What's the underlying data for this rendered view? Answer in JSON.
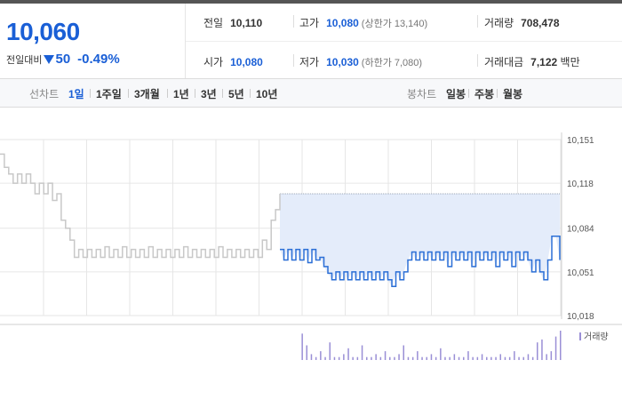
{
  "quote": {
    "price": "10,060",
    "diff_label": "전일대비",
    "diff_amount": "50",
    "diff_rate": "-0.49%"
  },
  "stats": {
    "prev_close": {
      "label": "전일",
      "value": "10,110"
    },
    "high": {
      "label": "고가",
      "value": "10,080",
      "sub": "(상한가 13,140)"
    },
    "volume": {
      "label": "거래량",
      "value": "708,478"
    },
    "open": {
      "label": "시가",
      "value": "10,080"
    },
    "low": {
      "label": "저가",
      "value": "10,030",
      "sub": "(하한가 7,080)"
    },
    "amount": {
      "label": "거래대금",
      "value": "7,122",
      "unit": "백만"
    }
  },
  "toolbar": {
    "line_chart_label": "선차트",
    "periods": [
      "1일",
      "1주일",
      "3개월",
      "1년",
      "3년",
      "5년",
      "10년"
    ],
    "active_period": "1일",
    "candle_chart_label": "봉차트",
    "candles": [
      "일봉",
      "주봉",
      "월봉"
    ]
  },
  "chart_data": {
    "type": "line",
    "y_ticks": [
      "10,151",
      "10,118",
      "10,084",
      "10,051",
      "10,018"
    ],
    "ylim": [
      10018,
      10151
    ],
    "reference_price": 10110,
    "grid": true,
    "series": [
      {
        "color": "#c8c8c8",
        "values": [
          10140,
          10130,
          10125,
          10118,
          10125,
          10118,
          10125,
          10118,
          10110,
          10118,
          10110,
          10118,
          10105,
          10110,
          10090,
          10084,
          10075,
          10062,
          10068,
          10062,
          10068,
          10062,
          10068,
          10062,
          10070,
          10062,
          10068,
          10062,
          10070,
          10062,
          10068,
          10062,
          10068,
          10062,
          10070,
          10062,
          10068,
          10062,
          10068,
          10062,
          10068,
          10062,
          10070,
          10062,
          10068,
          10062,
          10068,
          10062,
          10068,
          10062,
          10070,
          10062,
          10068,
          10062,
          10068,
          10062,
          10068,
          10062,
          10068,
          10062,
          10075,
          10068,
          10090,
          10098,
          10110
        ]
      },
      {
        "color": "#2b6fd6",
        "values": [
          10068,
          10060,
          10068,
          10060,
          10068,
          10060,
          10068,
          10058,
          10068,
          10060,
          10062,
          10055,
          10050,
          10045,
          10051,
          10045,
          10051,
          10045,
          10051,
          10045,
          10051,
          10045,
          10051,
          10045,
          10051,
          10045,
          10051,
          10045,
          10040,
          10051,
          10045,
          10051,
          10060,
          10066,
          10060,
          10066,
          10060,
          10066,
          10060,
          10066,
          10060,
          10066,
          10055,
          10066,
          10060,
          10066,
          10060,
          10066,
          10055,
          10066,
          10060,
          10066,
          10060,
          10066,
          10055,
          10066,
          10060,
          10066,
          10055,
          10066,
          10060,
          10066,
          10060,
          10051,
          10060,
          10051,
          10045,
          10060,
          10078,
          10078,
          10060
        ]
      }
    ],
    "volume_label": "거래량",
    "volume_color": "#9a8fd6",
    "volume": [
      0,
      0,
      0,
      0,
      0,
      0,
      0,
      0,
      0,
      0,
      0,
      0,
      0,
      0,
      0,
      0,
      0,
      0,
      0,
      0,
      0,
      0,
      0,
      0,
      0,
      0,
      0,
      0,
      0,
      0,
      0,
      0,
      0,
      0,
      0,
      0,
      0,
      0,
      0,
      0,
      0,
      0,
      0,
      0,
      0,
      0,
      0,
      0,
      0,
      0,
      0,
      0,
      0,
      0,
      0,
      0,
      0,
      0,
      0,
      0,
      0,
      0,
      0,
      0,
      0,
      0.9,
      0.5,
      0.2,
      0.1,
      0.3,
      0.1,
      0.6,
      0.1,
      0.1,
      0.2,
      0.4,
      0.1,
      0.1,
      0.5,
      0.1,
      0.1,
      0.2,
      0.1,
      0.3,
      0.1,
      0.1,
      0.2,
      0.5,
      0.1,
      0.1,
      0.3,
      0.1,
      0.1,
      0.2,
      0.1,
      0.4,
      0.1,
      0.1,
      0.2,
      0.1,
      0.1,
      0.3,
      0.1,
      0.1,
      0.2,
      0.1,
      0.1,
      0.1,
      0.2,
      0.1,
      0.1,
      0.3,
      0.1,
      0.1,
      0.2,
      0.1,
      0.6,
      0.7,
      0.2,
      0.3,
      0.8,
      1.0
    ]
  }
}
